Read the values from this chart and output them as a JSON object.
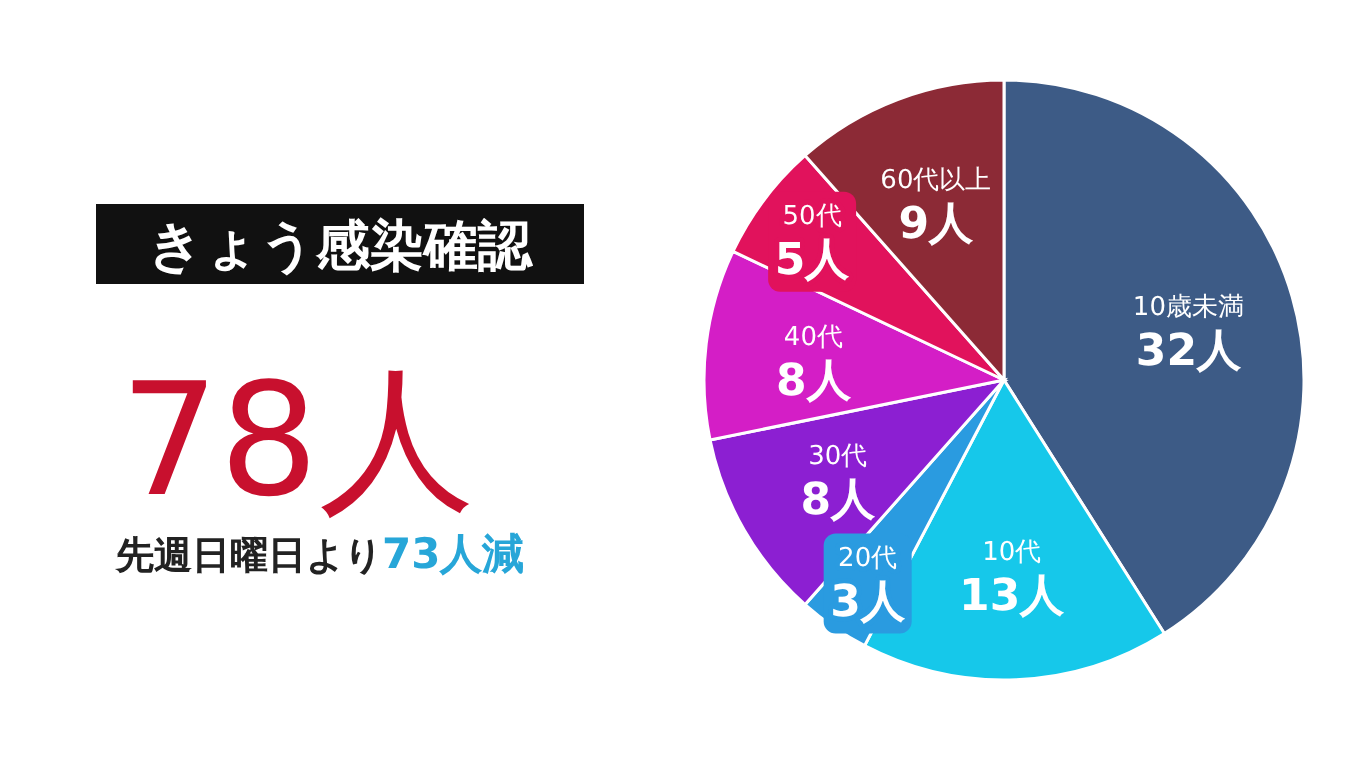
{
  "chart_data": {
    "type": "pie",
    "title": "きょう感染確認",
    "subtitle": "78人",
    "annotations": [
      "先週日曜日より",
      "73人減"
    ],
    "categories": [
      "10歳未満",
      "10代",
      "20代",
      "30代",
      "40代",
      "50代",
      "60代以上"
    ],
    "values": [
      32,
      13,
      3,
      8,
      8,
      5,
      9
    ],
    "value_labels": [
      "32人",
      "13人",
      "3人",
      "8人",
      "8人",
      "5人",
      "9人"
    ],
    "colors": [
      "#3d5b86",
      "#16c8ea",
      "#2a9be0",
      "#8c1fd2",
      "#d41ec6",
      "#e1125c",
      "#8c2a36"
    ]
  }
}
